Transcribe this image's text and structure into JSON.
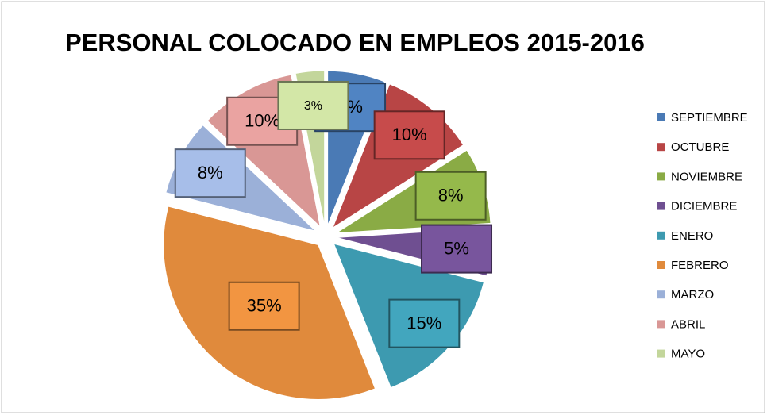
{
  "chart_data": {
    "type": "pie",
    "title": "PERSONAL COLOCADO EN EMPLEOS 2015-2016",
    "categories": [
      "SEPTIEMBRE",
      "OCTUBRE",
      "NOVIEMBRE",
      "DICIEMBRE",
      "ENERO",
      "FEBRERO",
      "MARZO",
      "ABRIL",
      "MAYO"
    ],
    "values": [
      6,
      10,
      8,
      5,
      15,
      35,
      8,
      10,
      3
    ],
    "value_labels": [
      "6%",
      "10%",
      "8%",
      "5%",
      "15%",
      "35%",
      "8%",
      "10%",
      "3%"
    ],
    "colors": [
      "#4a7ab5",
      "#b84545",
      "#8aab45",
      "#6f4f91",
      "#3d9ab0",
      "#e08a3c",
      "#9bb0d8",
      "#d99795",
      "#c3d69b"
    ],
    "legend": "right"
  }
}
